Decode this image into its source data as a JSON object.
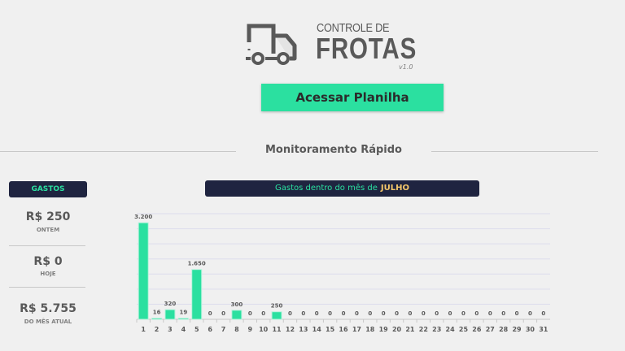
{
  "logo": {
    "top_text": "CONTROLE DE",
    "main_text": "FROTAS",
    "version": "v1.0"
  },
  "header": {
    "open_button": "Acessar Planilha"
  },
  "section": {
    "title": "Monitoramento Rápido"
  },
  "summary": {
    "label": "GASTOS",
    "items": [
      {
        "value": "R$ 250",
        "caption": "ONTEM"
      },
      {
        "value": "R$ 0",
        "caption": "HOJE"
      },
      {
        "value": "R$ 5.755",
        "caption": "DO MÊS ATUAL"
      }
    ]
  },
  "chart_title": {
    "prefix": "Gastos dentro do mês de",
    "month": "JULHO"
  },
  "colors": {
    "accent": "#2be0a0",
    "dark": "#1f2440",
    "month": "#f5c86a",
    "text": "#595959"
  },
  "chart_data": {
    "type": "bar",
    "categories": [
      "1",
      "2",
      "3",
      "4",
      "5",
      "6",
      "7",
      "8",
      "9",
      "10",
      "11",
      "12",
      "13",
      "14",
      "15",
      "16",
      "17",
      "18",
      "19",
      "20",
      "21",
      "22",
      "23",
      "24",
      "25",
      "26",
      "27",
      "28",
      "29",
      "30",
      "31"
    ],
    "values": [
      3200,
      16,
      320,
      19,
      1650,
      0,
      0,
      300,
      0,
      0,
      250,
      0,
      0,
      0,
      0,
      0,
      0,
      0,
      0,
      0,
      0,
      0,
      0,
      0,
      0,
      0,
      0,
      0,
      0,
      0,
      0
    ],
    "data_labels": [
      "3.200",
      "16",
      "320",
      "19",
      "1.650",
      "0",
      "0",
      "300",
      "0",
      "0",
      "250",
      "0",
      "0",
      "0",
      "0",
      "0",
      "0",
      "0",
      "0",
      "0",
      "0",
      "0",
      "0",
      "0",
      "0",
      "0",
      "0",
      "0",
      "0",
      "0",
      "0"
    ],
    "ylim": [
      0,
      3500
    ],
    "grid": true,
    "ygrid_step": 500
  }
}
